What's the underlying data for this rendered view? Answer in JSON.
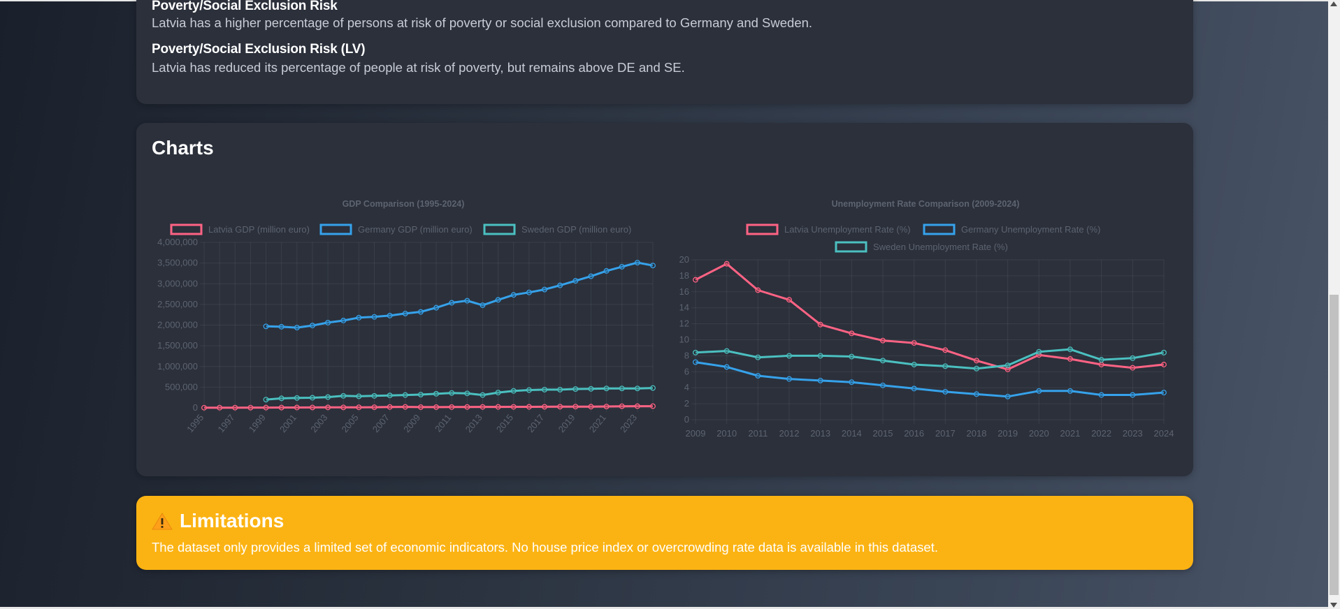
{
  "insights": [
    {
      "title": "Poverty/Social Exclusion Risk",
      "text": "Latvia has a higher percentage of persons at risk of poverty or social exclusion compared to Germany and Sweden."
    },
    {
      "title": "Poverty/Social Exclusion Risk (LV)",
      "text": "Latvia has reduced its percentage of people at risk of poverty, but remains above DE and SE."
    }
  ],
  "charts_section": {
    "title": "Charts"
  },
  "colors": {
    "latvia": "#ff6384",
    "germany": "#36a2eb",
    "sweden": "#4bc0c0",
    "warning_bg": "#fbb313"
  },
  "chart_data": [
    {
      "type": "line",
      "title": "GDP Comparison (1995-2024)",
      "x": [
        1995,
        1996,
        1997,
        1998,
        1999,
        2000,
        2001,
        2002,
        2003,
        2004,
        2005,
        2006,
        2007,
        2008,
        2009,
        2010,
        2011,
        2012,
        2013,
        2014,
        2015,
        2016,
        2017,
        2018,
        2019,
        2020,
        2021,
        2022,
        2023,
        2024
      ],
      "x_tick_labels": [
        "1995",
        "1997",
        "1999",
        "2001",
        "2003",
        "2005",
        "2007",
        "2009",
        "2011",
        "2013",
        "2015",
        "2017",
        "2019",
        "2021",
        "2023"
      ],
      "y_tick_labels": [
        "0",
        "500,000",
        "1,000,000",
        "1,500,000",
        "2,000,000",
        "2,500,000",
        "3,000,000",
        "3,500,000",
        "4,000,000"
      ],
      "ylim": [
        0,
        4000000
      ],
      "legend_position": "top",
      "grid": true,
      "series": [
        {
          "name": "Latvia GDP (million euro)",
          "color": "#ff6384",
          "values": [
            4000,
            5000,
            5500,
            6000,
            6500,
            8000,
            9000,
            10000,
            11000,
            12000,
            13500,
            16000,
            22000,
            24000,
            18000,
            18000,
            20000,
            22000,
            23000,
            24000,
            25000,
            25500,
            27000,
            29000,
            30500,
            29500,
            33000,
            39000,
            40500,
            41000
          ]
        },
        {
          "name": "Germany GDP (million euro)",
          "color": "#36a2eb",
          "values": [
            null,
            null,
            null,
            null,
            1970000,
            1960000,
            1940000,
            1990000,
            2060000,
            2110000,
            2180000,
            2200000,
            2230000,
            2280000,
            2320000,
            2420000,
            2540000,
            2590000,
            2480000,
            2610000,
            2730000,
            2790000,
            2860000,
            2960000,
            3070000,
            3180000,
            3310000,
            3410000,
            3510000,
            3440000
          ]
        },
        {
          "name": "Sweden GDP (million euro)",
          "color": "#4bc0c0",
          "values": [
            null,
            null,
            null,
            null,
            200000,
            230000,
            240000,
            245000,
            260000,
            290000,
            280000,
            290000,
            300000,
            310000,
            320000,
            340000,
            360000,
            350000,
            310000,
            370000,
            410000,
            430000,
            440000,
            440000,
            455000,
            460000,
            470000,
            470000,
            470000,
            480000
          ]
        }
      ]
    },
    {
      "type": "line",
      "title": "Unemployment Rate Comparison (2009-2024)",
      "x": [
        2009,
        2010,
        2011,
        2012,
        2013,
        2014,
        2015,
        2016,
        2017,
        2018,
        2019,
        2020,
        2021,
        2022,
        2023,
        2024
      ],
      "x_tick_labels": [
        "2009",
        "2010",
        "2011",
        "2012",
        "2013",
        "2014",
        "2015",
        "2016",
        "2017",
        "2018",
        "2019",
        "2020",
        "2021",
        "2022",
        "2023",
        "2024"
      ],
      "y_tick_labels": [
        "0",
        "2",
        "4",
        "6",
        "8",
        "10",
        "12",
        "14",
        "16",
        "18",
        "20"
      ],
      "ylim": [
        0,
        20
      ],
      "legend_position": "top",
      "grid": true,
      "series": [
        {
          "name": "Latvia Unemployment Rate (%)",
          "color": "#ff6384",
          "values": [
            17.5,
            19.5,
            16.2,
            15.0,
            11.9,
            10.8,
            9.9,
            9.6,
            8.7,
            7.4,
            6.3,
            8.1,
            7.6,
            6.9,
            6.5,
            6.9
          ]
        },
        {
          "name": "Germany Unemployment Rate (%)",
          "color": "#36a2eb",
          "values": [
            7.2,
            6.6,
            5.5,
            5.1,
            4.9,
            4.7,
            4.3,
            3.9,
            3.5,
            3.2,
            2.9,
            3.6,
            3.6,
            3.1,
            3.1,
            3.4
          ]
        },
        {
          "name": "Sweden Unemployment Rate (%)",
          "color": "#4bc0c0",
          "values": [
            8.4,
            8.6,
            7.8,
            8.0,
            8.0,
            7.9,
            7.4,
            6.9,
            6.7,
            6.4,
            6.8,
            8.5,
            8.8,
            7.5,
            7.7,
            8.4
          ]
        }
      ]
    }
  ],
  "limitations": {
    "icon": "warning-icon",
    "title": "Limitations",
    "text": "The dataset only provides a limited set of economic indicators. No house price index or overcrowding rate data is available in this dataset."
  }
}
